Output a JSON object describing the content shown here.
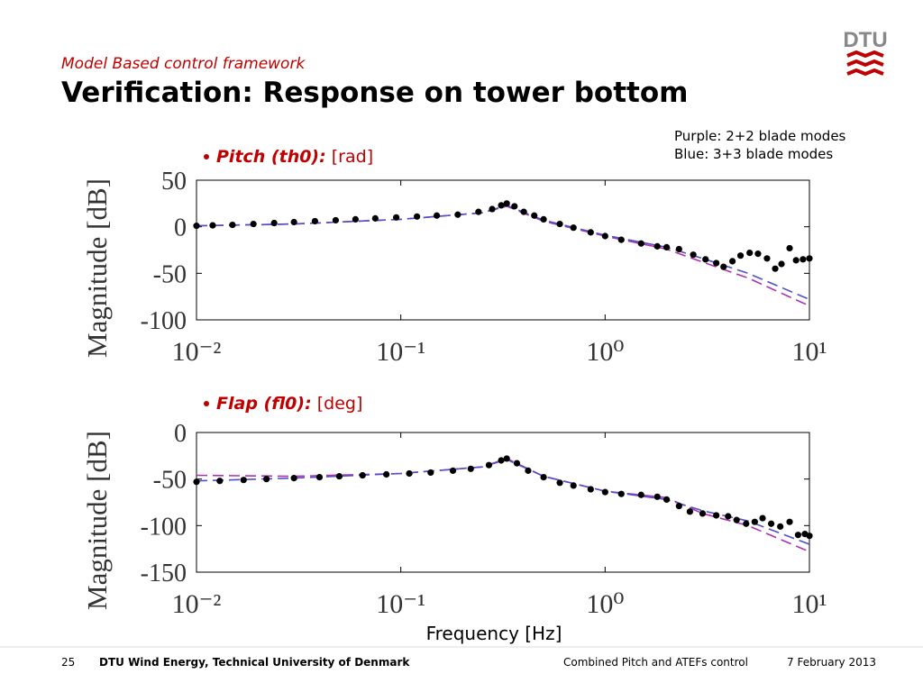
{
  "header": {
    "subtitle": "Model Based control framework",
    "title": "Verification: Response on tower bottom",
    "logo": "DTU"
  },
  "notes": [
    "Purple: 2+2 blade modes",
    "Blue: 3+3 blade modes"
  ],
  "footer": {
    "page": "25",
    "institution": "DTU Wind Energy, Technical University of Denmark",
    "topic": "Combined Pitch and ATEFs control",
    "date": "7 February 2013"
  },
  "chart_data": [
    {
      "type": "line",
      "title": "Pitch (th0):",
      "title_unit": "[rad]",
      "y_label": "Magnitude [dB]",
      "log_x": true,
      "xlim": [
        0.01,
        10
      ],
      "xticks": [
        {
          "value": 0.01,
          "label": "10⁻²"
        },
        {
          "value": 0.1,
          "label": "10⁻¹"
        },
        {
          "value": 1,
          "label": "10⁰"
        },
        {
          "value": 10,
          "label": "10¹"
        }
      ],
      "ylim": [
        -100,
        50
      ],
      "yticks": [
        50,
        0,
        -50,
        -100
      ],
      "grid": false,
      "series": [
        {
          "color": "#000000",
          "marker": "dot",
          "x": [
            0.01,
            0.012,
            0.015,
            0.019,
            0.024,
            0.03,
            0.038,
            0.048,
            0.06,
            0.075,
            0.095,
            0.12,
            0.15,
            0.19,
            0.24,
            0.28,
            0.31,
            0.33,
            0.36,
            0.4,
            0.45,
            0.5,
            0.6,
            0.7,
            0.85,
            1.0,
            1.2,
            1.5,
            1.8,
            2.0,
            2.3,
            2.7,
            3.1,
            3.5,
            3.8,
            4.2,
            4.6,
            5.1,
            5.6,
            6.2,
            6.8,
            7.3,
            8.0,
            8.6,
            9.3,
            10
          ],
          "values": [
            1,
            1.5,
            2,
            3,
            4,
            5,
            6,
            7,
            8,
            9,
            10,
            11,
            12,
            13,
            16,
            19,
            23,
            25,
            22,
            16,
            12,
            8,
            3,
            -1,
            -6,
            -10,
            -14,
            -18,
            -21,
            -22,
            -24,
            -30,
            -35,
            -39,
            -43,
            -37,
            -31,
            -28,
            -29,
            -34,
            -45,
            -40,
            -23,
            -36,
            -35,
            -34
          ]
        },
        {
          "color": "#b030b0",
          "dash": true,
          "x": [
            0.01,
            0.03,
            0.1,
            0.25,
            0.33,
            0.5,
            1,
            2,
            3,
            5,
            10
          ],
          "values": [
            1,
            3,
            8,
            15,
            22,
            6,
            -10,
            -24,
            -38,
            -55,
            -85
          ]
        },
        {
          "color": "#5050c8",
          "dash": true,
          "x": [
            0.01,
            0.03,
            0.1,
            0.25,
            0.33,
            0.5,
            1,
            2,
            3,
            5,
            10
          ],
          "values": [
            1,
            3,
            8,
            15,
            23,
            7,
            -9,
            -22,
            -34,
            -50,
            -78
          ]
        }
      ]
    },
    {
      "type": "line",
      "title": "Flap (fl0):",
      "title_unit": "[deg]",
      "y_label": "Magnitude [dB]",
      "x_label": "Frequency [Hz]",
      "log_x": true,
      "xlim": [
        0.01,
        10
      ],
      "xticks": [
        {
          "value": 0.01,
          "label": "10⁻²"
        },
        {
          "value": 0.1,
          "label": "10⁻¹"
        },
        {
          "value": 1,
          "label": "10⁰"
        },
        {
          "value": 10,
          "label": "10¹"
        }
      ],
      "ylim": [
        -150,
        0
      ],
      "yticks": [
        0,
        -50,
        -100,
        -150
      ],
      "grid": false,
      "series": [
        {
          "color": "#000000",
          "marker": "dot",
          "x": [
            0.01,
            0.013,
            0.017,
            0.022,
            0.03,
            0.04,
            0.05,
            0.065,
            0.085,
            0.11,
            0.14,
            0.18,
            0.22,
            0.27,
            0.31,
            0.33,
            0.37,
            0.42,
            0.5,
            0.6,
            0.7,
            0.85,
            1.0,
            1.2,
            1.5,
            1.8,
            2.0,
            2.3,
            2.6,
            3.0,
            3.5,
            4.0,
            4.4,
            4.9,
            5.4,
            5.9,
            6.5,
            7.2,
            8.0,
            8.8,
            9.5,
            10
          ],
          "values": [
            -53,
            -52,
            -51,
            -50,
            -49,
            -48,
            -47,
            -46,
            -45,
            -44,
            -43,
            -41,
            -39,
            -35,
            -30,
            -28,
            -33,
            -41,
            -48,
            -54,
            -57,
            -61,
            -64,
            -66,
            -67,
            -69,
            -72,
            -79,
            -85,
            -87,
            -89,
            -90,
            -94,
            -98,
            -96,
            -92,
            -98,
            -101,
            -96,
            -110,
            -109,
            -111
          ]
        },
        {
          "color": "#b030b0",
          "dash": true,
          "x": [
            0.01,
            0.03,
            0.1,
            0.25,
            0.33,
            0.5,
            1,
            2,
            3,
            5,
            10
          ],
          "values": [
            -46,
            -47,
            -44,
            -37,
            -28,
            -47,
            -63,
            -70,
            -87,
            -100,
            -128
          ]
        },
        {
          "color": "#5050c8",
          "dash": true,
          "x": [
            0.01,
            0.03,
            0.1,
            0.25,
            0.33,
            0.5,
            1,
            2,
            3,
            5,
            10
          ],
          "values": [
            -52,
            -49,
            -44,
            -37,
            -29,
            -47,
            -63,
            -72,
            -84,
            -95,
            -120
          ]
        }
      ]
    }
  ]
}
